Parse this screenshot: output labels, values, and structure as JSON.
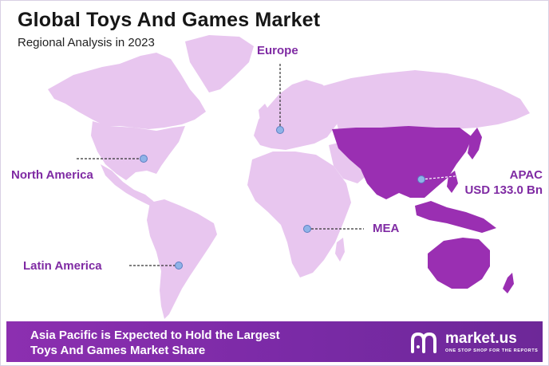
{
  "header": {
    "title": "Global Toys And Games Market",
    "subtitle": "Regional Analysis in 2023"
  },
  "regions": [
    {
      "id": "north-america",
      "label": "North America"
    },
    {
      "id": "europe",
      "label": "Europe"
    },
    {
      "id": "apac",
      "label": "APAC",
      "value": "USD 133.0 Bn"
    },
    {
      "id": "mea",
      "label": "MEA"
    },
    {
      "id": "latin-america",
      "label": "Latin America"
    }
  ],
  "colors": {
    "light_land": "#e8c6ef",
    "mid_land": "#d99be6",
    "apac_land": "#9a2fb2",
    "accent_text": "#7f2aa3",
    "marker": "#8fb3e8",
    "footer_bg": "#7a2aa6"
  },
  "footer": {
    "line1": "Asia Pacific is Expected to Hold the Largest",
    "line2": "Toys And Games Market Share",
    "brand_name": "market.us",
    "brand_tagline": "ONE STOP SHOP FOR THE REPORTS",
    "brand_icon": "market-us-logo-icon"
  }
}
